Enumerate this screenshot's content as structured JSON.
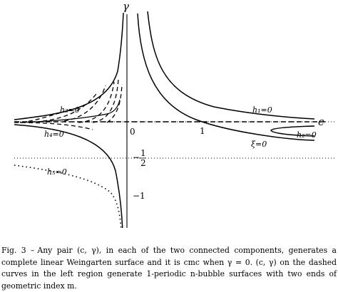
{
  "figure": {
    "axis_labels": {
      "gamma": "γ",
      "c": "c"
    },
    "ticks": {
      "zero": "0",
      "one": "1",
      "minus_one": "−1",
      "minus_sign": "−",
      "half_num": "1",
      "half_den": "2"
    },
    "curve_labels": {
      "h1": "h₁=0",
      "h2": "h₂=0",
      "h3": "h₃=0",
      "h4": "h₄=0",
      "h5": "h₅=0",
      "xi": "ξ=0"
    }
  },
  "caption": {
    "label": "Fig.  3 –",
    "text": "Any pair (c, γ), in each of the two connected components, generates a complete linear Weingarten surface and it is cmc when γ = 0. (c, γ) on the dashed curves in the left region generate 1-periodic n-bubble surfaces with two ends of geometric index m."
  }
}
